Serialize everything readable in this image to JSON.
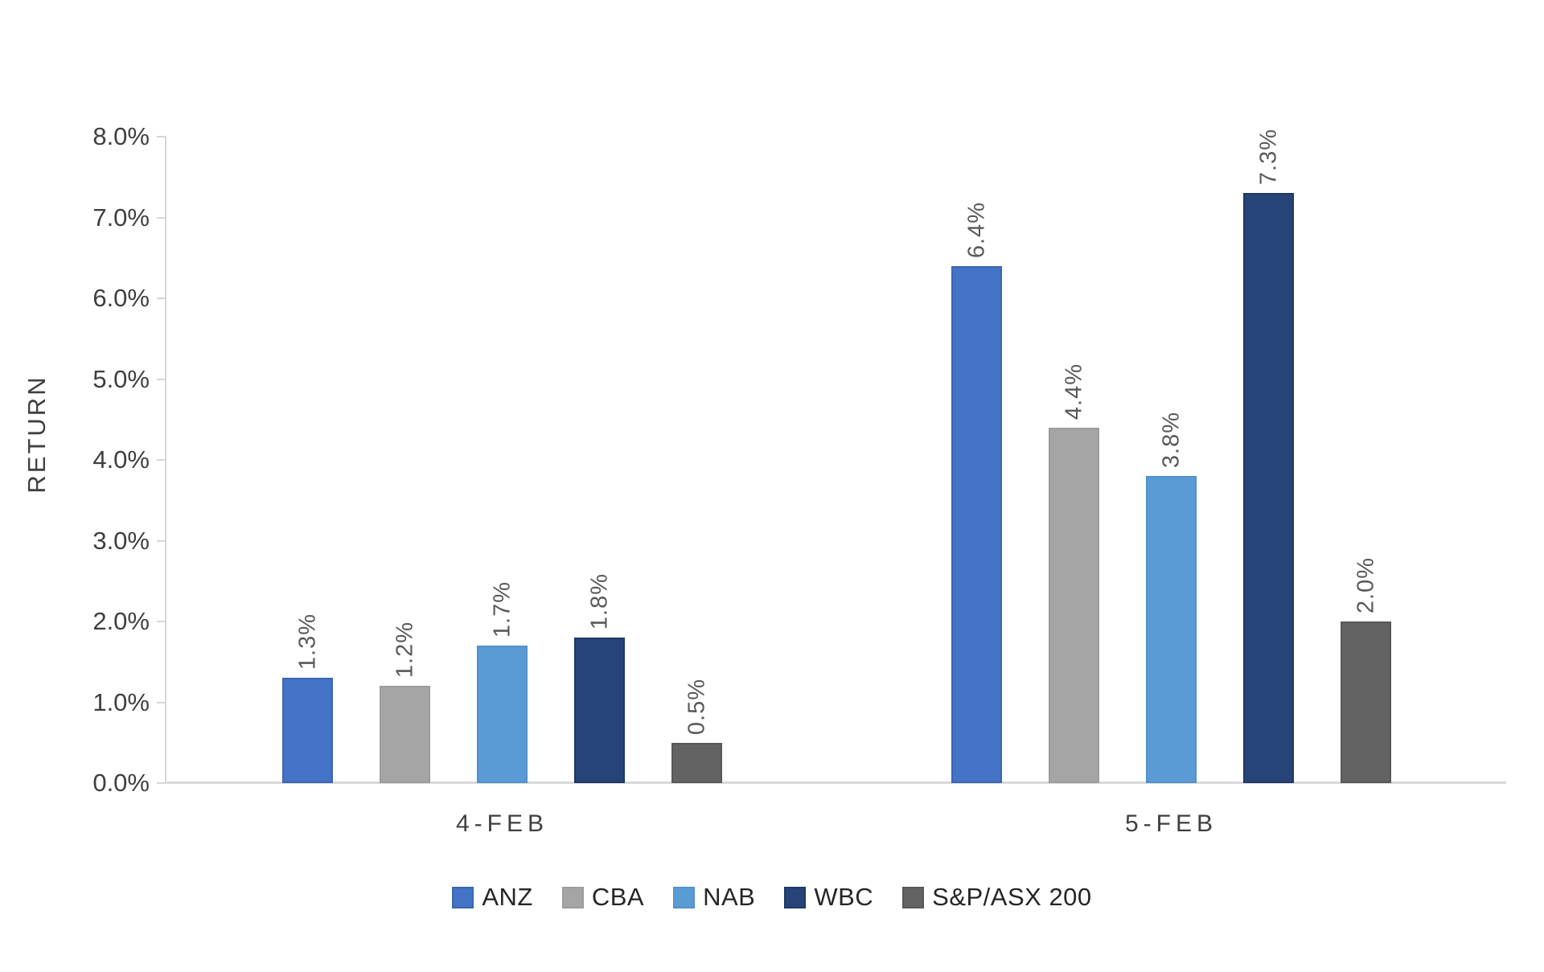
{
  "chart_data": {
    "type": "bar",
    "title": "",
    "xlabel": "",
    "ylabel": "RETURN",
    "categories": [
      "4-FEB",
      "5-FEB"
    ],
    "series": [
      {
        "name": "ANZ",
        "color": "#4472C4",
        "border": "#3a66b5",
        "values": [
          1.3,
          6.4
        ],
        "labels": [
          "1.3%",
          "6.4%"
        ]
      },
      {
        "name": "CBA",
        "color": "#A5A5A5",
        "border": "#9c9c9c",
        "values": [
          1.2,
          4.4
        ],
        "labels": [
          "1.2%",
          "4.4%"
        ]
      },
      {
        "name": "NAB",
        "color": "#5B9BD5",
        "border": "#5191cc",
        "values": [
          1.7,
          3.8
        ],
        "labels": [
          "1.7%",
          "3.8%"
        ]
      },
      {
        "name": "WBC",
        "color": "#264478",
        "border": "#1f3864",
        "values": [
          1.8,
          7.3
        ],
        "labels": [
          "1.8%",
          "7.3%"
        ]
      },
      {
        "name": "S&P/ASX 200",
        "color": "#636363",
        "border": "#585858",
        "values": [
          0.5,
          2.0
        ],
        "labels": [
          "0.5%",
          "2.0%"
        ]
      }
    ],
    "y_axis": {
      "min": 0,
      "max": 8,
      "step": 1,
      "tick_labels": [
        "0.0%",
        "1.0%",
        "2.0%",
        "3.0%",
        "4.0%",
        "5.0%",
        "6.0%",
        "7.0%",
        "8.0%"
      ]
    },
    "grid": false,
    "legend_position": "bottom",
    "data_label_rotation": -90,
    "axis_color": "#d9d9d9",
    "tick_label_color": "#3f3f3f",
    "data_label_color": "#595959"
  }
}
